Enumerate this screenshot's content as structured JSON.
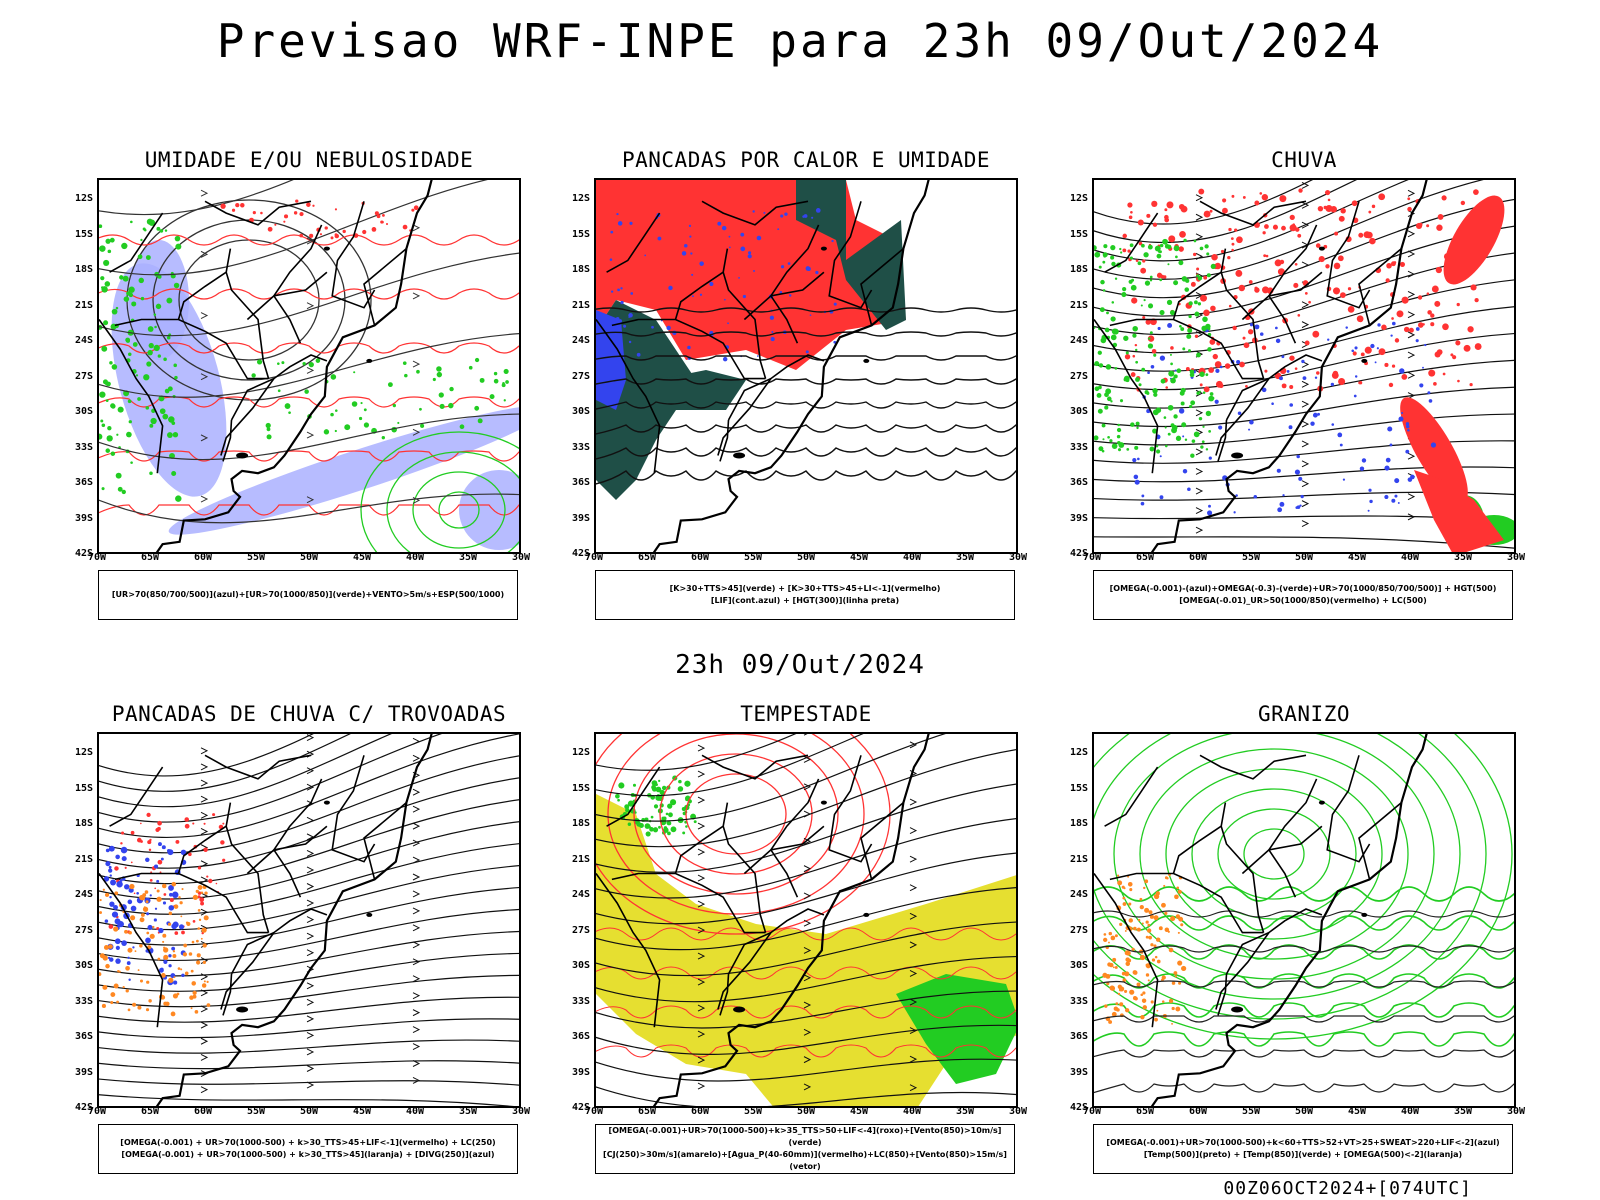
{
  "header": {
    "title": "Previsao WRF-INPE  para 23h 09/Out/2024"
  },
  "middle_label": "23h 09/Out/2024",
  "footer": "00Z06OCT2024+[074UTC]",
  "axes": {
    "lat_ticks": [
      "12S",
      "15S",
      "18S",
      "21S",
      "24S",
      "27S",
      "30S",
      "33S",
      "36S",
      "39S",
      "42S"
    ],
    "lon_ticks": [
      "70W",
      "65W",
      "60W",
      "55W",
      "50W",
      "45W",
      "40W",
      "35W",
      "30W"
    ]
  },
  "panels": [
    {
      "title": "UMIDADE E/OU NEBULOSIDADE",
      "legend": [
        "[UR>70(850/700/500)](azul)+[UR>70(1000/850)](verde)+VENTO>5m/s+ESP(500/1000)"
      ],
      "theme": "humidity"
    },
    {
      "title": "PANCADAS POR CALOR E UMIDADE",
      "legend": [
        "[K>30+TTS>45](verde) + [K>30+TTS>45+LI<-1](vermelho)",
        "[LIF](cont.azul) + [HGT(300)](linha preta)"
      ],
      "theme": "heat"
    },
    {
      "title": "CHUVA",
      "legend": [
        "[OMEGA(-0.001)-(azul)+OMEGA(-0.3)-(verde)+UR>70(1000/850/700/500)] + HGT(500)",
        "[OMEGA(-0.01)_UR>50(1000/850)(vermelho) + LC(500)"
      ],
      "theme": "rain"
    },
    {
      "title": "PANCADAS DE CHUVA C/ TROVOADAS",
      "legend": [
        "[OMEGA(-0.001) + UR>70(1000-500) + k>30_TTS>45+LIF<-1](vermelho) + LC(250)",
        "[OMEGA(-0.001) + UR>70(1000-500) + k>30_TTS>45](laranja) + [DIVG(250)](azul)"
      ],
      "theme": "storms"
    },
    {
      "title": "TEMPESTADE",
      "legend": [
        "[OMEGA(-0.001)+UR>70(1000-500)+k>35_TTS>50+LIF<-4](roxo)+[Vento(850)>10m/s](verde)",
        "[CJ(250)>30m/s](amarelo)+[Agua_P(40-60mm)](vermelho)+LC(850)+[Vento(850)>15m/s](vetor)"
      ],
      "theme": "tempest"
    },
    {
      "title": "GRANIZO",
      "legend": [
        "[OMEGA(-0.001)+UR>70(1000-500)+k<60+TTS>52+VT>25+SWEAT>220+LIF<-2](azul)",
        "[Temp(500)](preto) + [Temp(850)](verde) + [OMEGA(500)<-2](laranja)"
      ],
      "theme": "hail"
    }
  ],
  "colors": {
    "red": "#ff3333",
    "blue": "#3344ee",
    "green": "#22cc22",
    "lavender": "#aab0ff",
    "darkgreen": "#1f4f47",
    "yellow": "#e6df30",
    "orange": "#ff8822",
    "black": "#000000"
  }
}
